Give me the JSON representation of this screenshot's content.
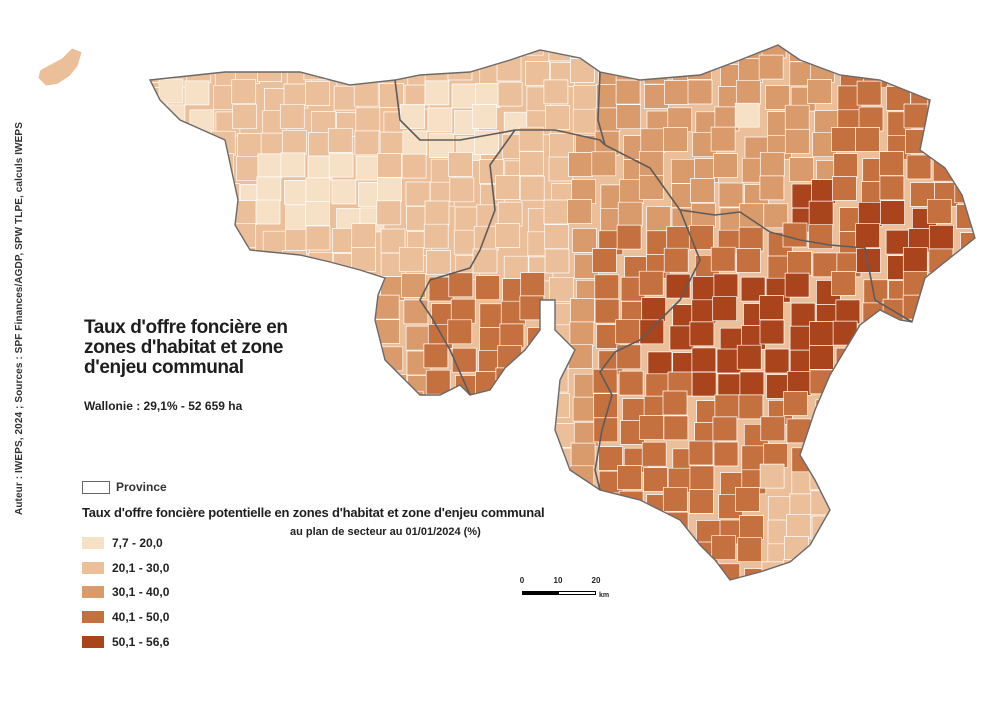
{
  "title": "Taux d'offre foncière en zones d'habitat et zone d'enjeu communal",
  "region_summary": "Wallonie : 29,1% - 52 659 ha",
  "credits": "Auteur : IWEPS, 2024 ; Sources : SPF Finances/AGDP, SPW TLPE, calculs IWEPS",
  "legend": {
    "province_label": "Province",
    "title": "Taux d'offre foncière potentielle en zones d'habitat et zone d'enjeu communal",
    "subtitle": "au plan de secteur au 01/01/2024 (%)",
    "classes": [
      {
        "label": "7,7 - 20,0",
        "color": "#f7e1c6"
      },
      {
        "label": "20,1 - 30,0",
        "color": "#ebbf9a"
      },
      {
        "label": "30,1 - 40,0",
        "color": "#d99a6c"
      },
      {
        "label": "40,1 - 50,0",
        "color": "#c5703f"
      },
      {
        "label": "50,1 - 56,6",
        "color": "#a9441c"
      }
    ]
  },
  "scalebar": {
    "ticks": [
      "0",
      "10",
      "20"
    ],
    "unit": "km"
  },
  "colors": {
    "province_border": "#5c5c5c",
    "commune_border": "#ffffff"
  }
}
